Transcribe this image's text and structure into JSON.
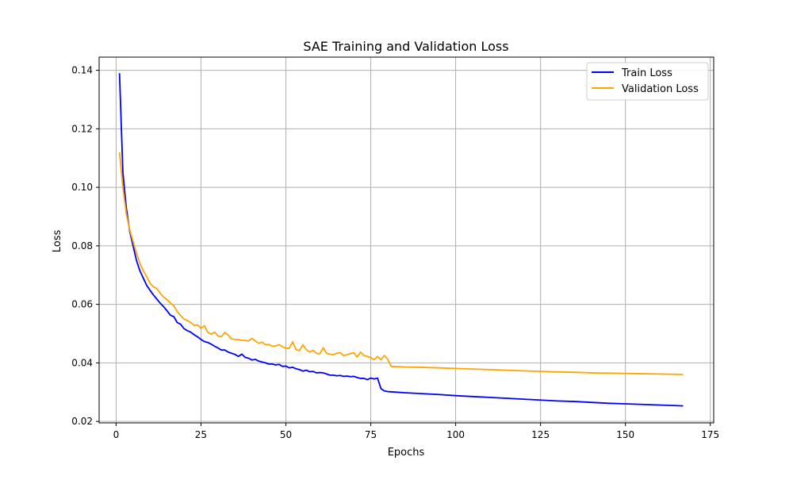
{
  "chart_data": {
    "type": "line",
    "title": "SAE Training and Validation Loss",
    "xlabel": "Epochs",
    "ylabel": "Loss",
    "xlim": [
      -5,
      176
    ],
    "ylim": [
      0.0195,
      0.1445
    ],
    "x_ticks": [
      0,
      25,
      50,
      75,
      100,
      125,
      150,
      175
    ],
    "y_ticks": [
      0.02,
      0.04,
      0.06,
      0.08,
      0.1,
      0.12,
      0.14
    ],
    "x_tick_labels": [
      "0",
      "25",
      "50",
      "75",
      "100",
      "125",
      "150",
      "175"
    ],
    "y_tick_labels": [
      "0.02",
      "0.04",
      "0.06",
      "0.08",
      "0.10",
      "0.12",
      "0.14"
    ],
    "grid": true,
    "legend_position": "top-right",
    "series": [
      {
        "name": "Train Loss",
        "color": "#0000ff",
        "points": [
          [
            1,
            0.139
          ],
          [
            2,
            0.105
          ],
          [
            3,
            0.093
          ],
          [
            4,
            0.085
          ],
          [
            5,
            0.08
          ],
          [
            6,
            0.075
          ],
          [
            7,
            0.0715
          ],
          [
            8,
            0.069
          ],
          [
            9,
            0.0665
          ],
          [
            10,
            0.0648
          ],
          [
            11,
            0.0632
          ],
          [
            12,
            0.0618
          ],
          [
            13,
            0.0604
          ],
          [
            14,
            0.0592
          ],
          [
            15,
            0.0578
          ],
          [
            16,
            0.0563
          ],
          [
            17,
            0.0558
          ],
          [
            18,
            0.0538
          ],
          [
            19,
            0.0532
          ],
          [
            20,
            0.0517
          ],
          [
            21,
            0.051
          ],
          [
            22,
            0.0505
          ],
          [
            23,
            0.0496
          ],
          [
            24,
            0.0489
          ],
          [
            25,
            0.048
          ],
          [
            26,
            0.0473
          ],
          [
            27,
            0.047
          ],
          [
            28,
            0.0464
          ],
          [
            29,
            0.0457
          ],
          [
            30,
            0.0451
          ],
          [
            31,
            0.0444
          ],
          [
            32,
            0.0444
          ],
          [
            33,
            0.0437
          ],
          [
            34,
            0.0433
          ],
          [
            35,
            0.0429
          ],
          [
            36,
            0.0422
          ],
          [
            37,
            0.043
          ],
          [
            38,
            0.0419
          ],
          [
            39,
            0.0416
          ],
          [
            40,
            0.041
          ],
          [
            41,
            0.0412
          ],
          [
            42,
            0.0406
          ],
          [
            43,
            0.0403
          ],
          [
            44,
            0.04
          ],
          [
            45,
            0.0396
          ],
          [
            46,
            0.0396
          ],
          [
            47,
            0.0393
          ],
          [
            48,
            0.0395
          ],
          [
            49,
            0.0388
          ],
          [
            50,
            0.0389
          ],
          [
            51,
            0.0383
          ],
          [
            52,
            0.0385
          ],
          [
            53,
            0.038
          ],
          [
            54,
            0.0377
          ],
          [
            55,
            0.0372
          ],
          [
            56,
            0.0375
          ],
          [
            57,
            0.037
          ],
          [
            58,
            0.0371
          ],
          [
            59,
            0.0366
          ],
          [
            60,
            0.0367
          ],
          [
            61,
            0.0366
          ],
          [
            62,
            0.0362
          ],
          [
            63,
            0.0358
          ],
          [
            64,
            0.0358
          ],
          [
            65,
            0.0356
          ],
          [
            66,
            0.0357
          ],
          [
            67,
            0.0354
          ],
          [
            68,
            0.0355
          ],
          [
            69,
            0.0353
          ],
          [
            70,
            0.0354
          ],
          [
            71,
            0.035
          ],
          [
            72,
            0.0347
          ],
          [
            73,
            0.0347
          ],
          [
            74,
            0.0343
          ],
          [
            75,
            0.0348
          ],
          [
            76,
            0.0345
          ],
          [
            77,
            0.0348
          ],
          [
            78,
            0.0312
          ],
          [
            79,
            0.0304
          ],
          [
            80,
            0.0302
          ],
          [
            85,
            0.0298
          ],
          [
            90,
            0.0295
          ],
          [
            95,
            0.0292
          ],
          [
            100,
            0.0288
          ],
          [
            105,
            0.0285
          ],
          [
            110,
            0.0282
          ],
          [
            115,
            0.0279
          ],
          [
            120,
            0.0276
          ],
          [
            125,
            0.0273
          ],
          [
            130,
            0.027
          ],
          [
            135,
            0.0268
          ],
          [
            140,
            0.0265
          ],
          [
            145,
            0.0262
          ],
          [
            150,
            0.026
          ],
          [
            155,
            0.0258
          ],
          [
            160,
            0.0256
          ],
          [
            165,
            0.0254
          ],
          [
            167,
            0.0253
          ]
        ]
      },
      {
        "name": "Validation Loss",
        "color": "#ffa500",
        "points": [
          [
            1,
            0.112
          ],
          [
            2,
            0.1
          ],
          [
            3,
            0.091
          ],
          [
            4,
            0.0855
          ],
          [
            5,
            0.0815
          ],
          [
            6,
            0.0775
          ],
          [
            7,
            0.074
          ],
          [
            8,
            0.0715
          ],
          [
            9,
            0.0695
          ],
          [
            10,
            0.0672
          ],
          [
            11,
            0.066
          ],
          [
            12,
            0.0654
          ],
          [
            13,
            0.0638
          ],
          [
            14,
            0.0625
          ],
          [
            15,
            0.0616
          ],
          [
            16,
            0.0605
          ],
          [
            17,
            0.0595
          ],
          [
            18,
            0.0575
          ],
          [
            19,
            0.0562
          ],
          [
            20,
            0.055
          ],
          [
            21,
            0.0545
          ],
          [
            22,
            0.0538
          ],
          [
            23,
            0.0528
          ],
          [
            24,
            0.053
          ],
          [
            25,
            0.0518
          ],
          [
            26,
            0.0527
          ],
          [
            27,
            0.0505
          ],
          [
            28,
            0.0498
          ],
          [
            29,
            0.0505
          ],
          [
            30,
            0.0492
          ],
          [
            31,
            0.049
          ],
          [
            32,
            0.0504
          ],
          [
            33,
            0.0495
          ],
          [
            34,
            0.0482
          ],
          [
            35,
            0.048
          ],
          [
            36,
            0.048
          ],
          [
            37,
            0.0477
          ],
          [
            38,
            0.0477
          ],
          [
            39,
            0.0475
          ],
          [
            40,
            0.0484
          ],
          [
            41,
            0.0475
          ],
          [
            42,
            0.0467
          ],
          [
            43,
            0.0471
          ],
          [
            44,
            0.0462
          ],
          [
            45,
            0.0463
          ],
          [
            46,
            0.0457
          ],
          [
            47,
            0.0458
          ],
          [
            48,
            0.0462
          ],
          [
            49,
            0.0455
          ],
          [
            50,
            0.045
          ],
          [
            51,
            0.045
          ],
          [
            52,
            0.0472
          ],
          [
            53,
            0.0445
          ],
          [
            54,
            0.0442
          ],
          [
            55,
            0.0462
          ],
          [
            56,
            0.0445
          ],
          [
            57,
            0.0437
          ],
          [
            58,
            0.0443
          ],
          [
            59,
            0.0433
          ],
          [
            60,
            0.0431
          ],
          [
            61,
            0.0452
          ],
          [
            62,
            0.0433
          ],
          [
            63,
            0.043
          ],
          [
            64,
            0.0428
          ],
          [
            65,
            0.0433
          ],
          [
            66,
            0.0435
          ],
          [
            67,
            0.0425
          ],
          [
            68,
            0.0428
          ],
          [
            69,
            0.0432
          ],
          [
            70,
            0.0435
          ],
          [
            71,
            0.042
          ],
          [
            72,
            0.0437
          ],
          [
            73,
            0.0425
          ],
          [
            74,
            0.0422
          ],
          [
            75,
            0.0418
          ],
          [
            76,
            0.0411
          ],
          [
            77,
            0.0422
          ],
          [
            78,
            0.0411
          ],
          [
            79,
            0.0425
          ],
          [
            80,
            0.0413
          ],
          [
            81,
            0.0388
          ],
          [
            85,
            0.0386
          ],
          [
            90,
            0.0385
          ],
          [
            95,
            0.0383
          ],
          [
            100,
            0.0381
          ],
          [
            105,
            0.0379
          ],
          [
            110,
            0.0377
          ],
          [
            115,
            0.0375
          ],
          [
            120,
            0.0373
          ],
          [
            125,
            0.0371
          ],
          [
            130,
            0.0369
          ],
          [
            135,
            0.0368
          ],
          [
            140,
            0.0366
          ],
          [
            145,
            0.0365
          ],
          [
            150,
            0.0364
          ],
          [
            155,
            0.0363
          ],
          [
            160,
            0.0362
          ],
          [
            165,
            0.0361
          ],
          [
            167,
            0.036
          ]
        ]
      }
    ]
  }
}
